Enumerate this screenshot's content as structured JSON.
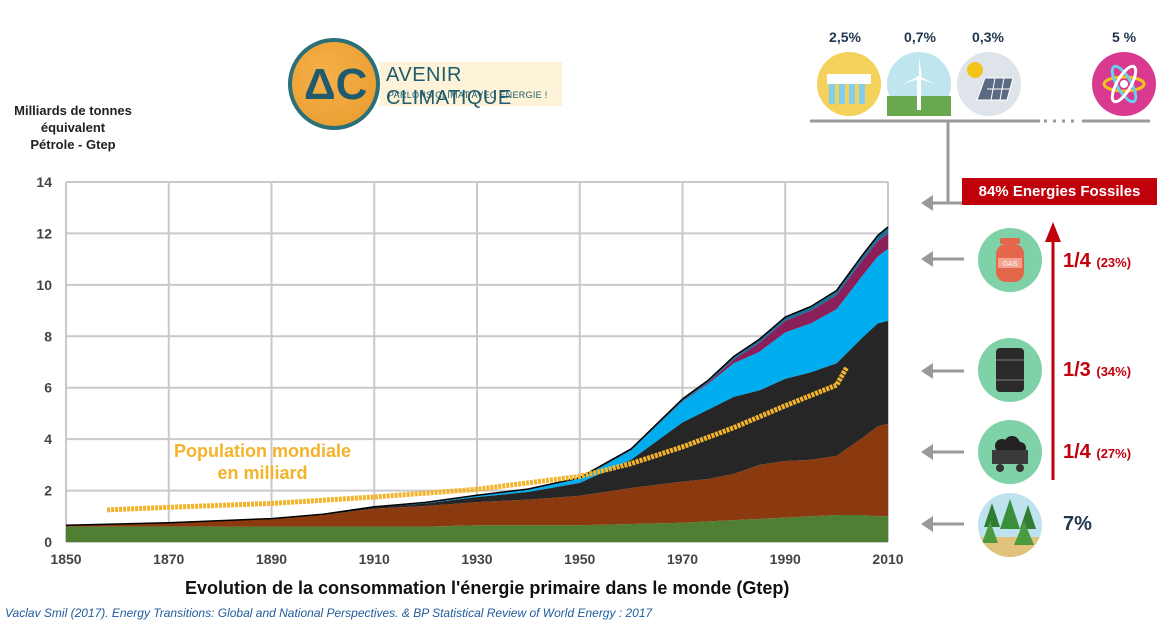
{
  "logo": {
    "title": "AVENIR CLIMATIQUE",
    "subtitle": "PARLONS CLIMAT AVEC ÉNERGIE !"
  },
  "y_axis_title": [
    "Milliards de tonnes",
    "équivalent",
    "Pétrole - Gtep"
  ],
  "renewables": [
    {
      "name": "hydro-icon",
      "pct": "2,5%"
    },
    {
      "name": "wind-icon",
      "pct": "0,7%"
    },
    {
      "name": "solar-icon",
      "pct": "0,3%"
    },
    {
      "name": "nuclear-icon",
      "pct": "5 %"
    }
  ],
  "fossil_banner": "84% Energies Fossiles",
  "fossil_breakdown": [
    {
      "name": "gas",
      "fraction": "1/4",
      "pct": "(23%)"
    },
    {
      "name": "oil",
      "fraction": "1/3",
      "pct": "(34%)"
    },
    {
      "name": "coal",
      "fraction": "1/4",
      "pct": "(27%)"
    }
  ],
  "biomass_pct": "7%",
  "colors": {
    "biomass": "#4f7f32",
    "coal": "#8b3a0f",
    "oil": "#262626",
    "gas": "#00aeef",
    "nuclear": "#8b1f5a",
    "hydro": "#1c6f95",
    "population": "#f3b32a",
    "fossil_red": "#c0000b"
  },
  "chart_data": {
    "type": "area",
    "title": "Evolution de la consommation l'énergie primaire dans le monde (Gtep)",
    "xlabel": "",
    "ylabel": "Milliards de tonnes équivalent Pétrole - Gtep",
    "xlim": [
      1850,
      2010
    ],
    "ylim": [
      0,
      14
    ],
    "xticks": [
      1850,
      1870,
      1890,
      1910,
      1930,
      1950,
      1970,
      1990,
      2010
    ],
    "yticks": [
      0,
      2,
      4,
      6,
      8,
      10,
      12,
      14
    ],
    "grid": true,
    "x": [
      1850,
      1870,
      1890,
      1900,
      1910,
      1920,
      1930,
      1940,
      1950,
      1960,
      1970,
      1975,
      1980,
      1985,
      1990,
      1995,
      2000,
      2005,
      2008,
      2010
    ],
    "series": [
      {
        "name": "Biomasse",
        "values": [
          0.6,
          0.6,
          0.6,
          0.6,
          0.6,
          0.6,
          0.65,
          0.65,
          0.65,
          0.7,
          0.75,
          0.8,
          0.85,
          0.9,
          0.95,
          1.0,
          1.05,
          1.05,
          1.0,
          1.0
        ]
      },
      {
        "name": "Charbon",
        "values": [
          0.05,
          0.15,
          0.3,
          0.45,
          0.7,
          0.8,
          0.9,
          1.0,
          1.15,
          1.4,
          1.6,
          1.65,
          1.8,
          2.1,
          2.2,
          2.2,
          2.3,
          3.0,
          3.5,
          3.6
        ]
      },
      {
        "name": "Pétrole",
        "values": [
          0.0,
          0.0,
          0.01,
          0.02,
          0.05,
          0.1,
          0.2,
          0.3,
          0.5,
          1.1,
          2.3,
          2.7,
          3.0,
          2.9,
          3.2,
          3.4,
          3.6,
          3.9,
          4.0,
          4.0
        ]
      },
      {
        "name": "Gaz",
        "values": [
          0.0,
          0.0,
          0.0,
          0.01,
          0.02,
          0.03,
          0.05,
          0.08,
          0.15,
          0.35,
          0.8,
          1.0,
          1.3,
          1.5,
          1.8,
          1.9,
          2.1,
          2.4,
          2.6,
          2.8
        ]
      },
      {
        "name": "Nucléaire",
        "values": [
          0,
          0,
          0,
          0,
          0,
          0,
          0,
          0,
          0,
          0,
          0.01,
          0.04,
          0.15,
          0.35,
          0.45,
          0.5,
          0.55,
          0.6,
          0.6,
          0.6
        ]
      },
      {
        "name": "Hydro",
        "values": [
          0,
          0,
          0,
          0,
          0,
          0.01,
          0.02,
          0.03,
          0.05,
          0.07,
          0.1,
          0.1,
          0.12,
          0.14,
          0.15,
          0.16,
          0.18,
          0.2,
          0.22,
          0.25
        ]
      },
      {
        "name": "Population mondiale en milliard",
        "x": [
          1858,
          1870,
          1890,
          1910,
          1930,
          1950,
          1960,
          1970,
          1980,
          1990,
          2000,
          2002
        ],
        "values": [
          1.25,
          1.35,
          1.5,
          1.75,
          2.05,
          2.55,
          3.05,
          3.7,
          4.45,
          5.3,
          6.1,
          6.8
        ]
      }
    ],
    "annotations": [
      "Population mondiale",
      "en milliard"
    ],
    "source": "Vaclav Smil (2017). Energy Transitions: Global and National Perspectives. & BP Statistical Review of World Energy : 2017"
  }
}
